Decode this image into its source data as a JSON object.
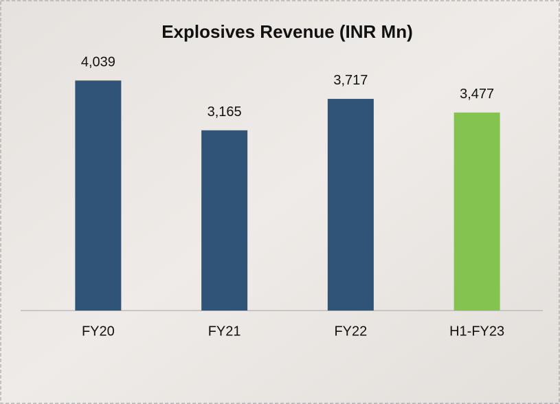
{
  "chart_data": {
    "type": "bar",
    "title": "Explosives Revenue (INR Mn)",
    "categories": [
      "FY20",
      "FY21",
      "FY22",
      "H1-FY23"
    ],
    "values": [
      4039,
      3165,
      3717,
      3477
    ],
    "value_labels": [
      "4,039",
      "3,165",
      "3,717",
      "3,477"
    ],
    "colors": [
      "#2f5478",
      "#2f5478",
      "#2f5478",
      "#84c350"
    ],
    "ylim": [
      0,
      4500
    ]
  }
}
